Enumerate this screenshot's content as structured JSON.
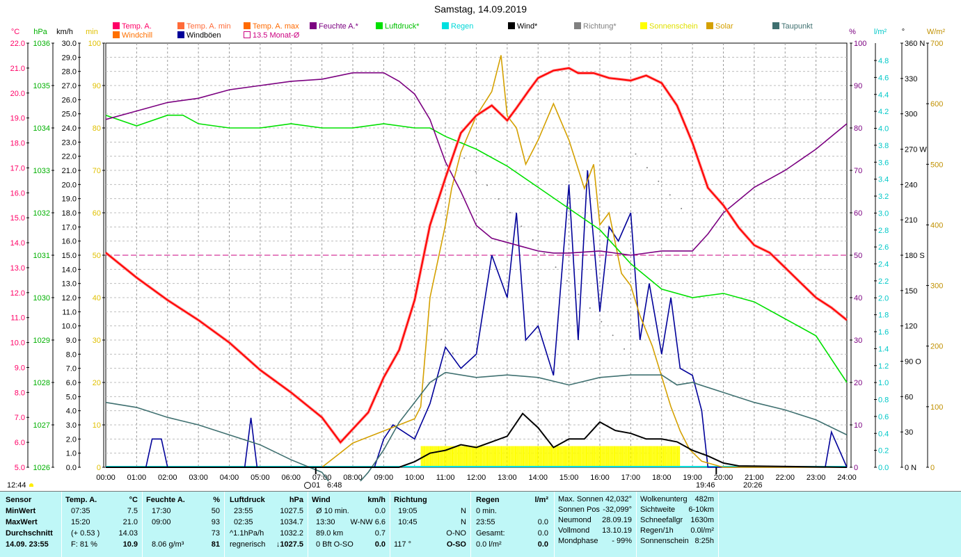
{
  "title": "Samstag, 14.09.2019",
  "legend": [
    {
      "label": "Temp. A.",
      "color": "#ff0066",
      "sym": "box"
    },
    {
      "label": "Temp. A. min",
      "color": "#ff6a38",
      "sym": "box"
    },
    {
      "label": "Temp. A. max",
      "color": "#ff6a00",
      "sym": "box"
    },
    {
      "label": "Feuchte A.*",
      "color": "#7b0080",
      "sym": "box"
    },
    {
      "label": "Luftdruck*",
      "color": "#00e000",
      "sym": "box"
    },
    {
      "label": "Regen",
      "color": "#00e0e0",
      "sym": "box"
    },
    {
      "label": "Wind*",
      "color": "#000000",
      "sym": "box"
    },
    {
      "label": "Richtung*",
      "color": "#808080",
      "sym": "box"
    },
    {
      "label": "Sonnenschein",
      "color": "#ffff00",
      "sym": "box"
    },
    {
      "label": "Solar",
      "color": "#d4a000",
      "sym": "box"
    },
    {
      "label": "Taupunkt",
      "color": "#3f7070",
      "sym": "box"
    },
    {
      "label": "Windchill",
      "color": "#ff7000",
      "sym": "box"
    },
    {
      "label": "Windböen",
      "color": "#000099",
      "sym": "box"
    },
    {
      "label": "13.5 Monat-Ø",
      "color": "#cc0080",
      "sym": "outline"
    }
  ],
  "axis_heads": {
    "celsius": "°C",
    "hpa": "hPa",
    "kmh": "km/h",
    "min": "min",
    "percent": "%",
    "lm2": "l/m²",
    "deg": "°",
    "wm2": "W/m²"
  },
  "axes": {
    "celsius": [
      "22.0",
      "21.0",
      "20.0",
      "19.0",
      "18.0",
      "17.0",
      "16.0",
      "15.0",
      "14.0",
      "13.0",
      "12.0",
      "11.0",
      "10.0",
      "9.0",
      "8.0",
      "7.0",
      "6.0",
      "5.0"
    ],
    "hpa": [
      "1036",
      "1035",
      "1034",
      "1033",
      "1032",
      "1031",
      "1030",
      "1029",
      "1028",
      "1027",
      "1026"
    ],
    "kmh": [
      "30.0",
      "29.0",
      "28.0",
      "27.0",
      "26.0",
      "25.0",
      "24.0",
      "23.0",
      "22.0",
      "21.0",
      "20.0",
      "19.0",
      "18.0",
      "17.0",
      "16.0",
      "15.0",
      "14.0",
      "13.0",
      "12.0",
      "11.0",
      "10.0",
      "9.0",
      "8.0",
      "7.0",
      "6.0",
      "5.0",
      "4.0",
      "3.0",
      "2.0",
      "1.0",
      "0.0"
    ],
    "min": [
      "100",
      "90",
      "80",
      "70",
      "60",
      "50",
      "40",
      "30",
      "20",
      "10",
      "0"
    ],
    "percent": [
      "100",
      "90",
      "80",
      "70",
      "60",
      "50",
      "40",
      "30",
      "20",
      "10",
      "0"
    ],
    "lm2": [
      "4.8",
      "4.6",
      "4.4",
      "4.2",
      "4.0",
      "3.8",
      "3.6",
      "3.4",
      "3.2",
      "3.0",
      "2.8",
      "2.6",
      "2.4",
      "2.2",
      "2.0",
      "1.8",
      "1.6",
      "1.4",
      "1.2",
      "1.0",
      "0.8",
      "0.6",
      "0.4",
      "0.2",
      "0.0"
    ],
    "deg": [
      "360 N",
      "330",
      "300",
      "270 W",
      "240",
      "210",
      "180 S",
      "150",
      "120",
      "90 O",
      "60",
      "30",
      "0 N"
    ],
    "wm2": [
      "700",
      "600",
      "500",
      "400",
      "300",
      "200",
      "100",
      "0"
    ]
  },
  "hours": [
    "00:00",
    "01:00",
    "02:00",
    "03:00",
    "04:00",
    "05:00",
    "06:00",
    "07:00",
    "08:00",
    "09:00",
    "10:00",
    "11:00",
    "12:00",
    "13:00",
    "14:00",
    "15:00",
    "16:00",
    "17:00",
    "18:00",
    "19:00",
    "20:00",
    "21:00",
    "22:00",
    "23:00",
    "24:00"
  ],
  "sun_times": {
    "rise_left": "12:44",
    "rise": "6:48",
    "set": "19:46",
    "set2": "20:26",
    "moon": "0",
    "moon_label": "01"
  },
  "chart_data": {
    "type": "line",
    "x_unit": "hour",
    "series": [
      {
        "name": "Temp. A.",
        "axis": "celsius",
        "color": "#ff0000",
        "x": [
          0,
          1,
          2,
          3,
          4,
          5,
          6,
          7,
          7.6,
          8.5,
          9,
          9.5,
          10,
          10.5,
          11,
          11.5,
          12,
          12.5,
          13,
          13.3,
          13.7,
          14,
          14.5,
          15,
          15.3,
          15.8,
          16.3,
          17,
          17.5,
          18,
          18.5,
          19,
          19.5,
          20,
          20.5,
          21,
          21.5,
          22,
          22.5,
          23,
          23.5,
          24
        ],
        "y": [
          13.6,
          12.6,
          11.7,
          10.9,
          10.0,
          8.9,
          8.0,
          7.0,
          6.0,
          7.2,
          8.6,
          9.7,
          11.7,
          14.7,
          16.6,
          18.4,
          19.1,
          19.5,
          18.9,
          19.4,
          20.1,
          20.6,
          20.9,
          21.0,
          20.8,
          20.8,
          20.6,
          20.5,
          20.7,
          20.4,
          19.5,
          18.0,
          16.2,
          15.5,
          14.6,
          13.9,
          13.6,
          13.0,
          12.4,
          11.8,
          11.4,
          10.9
        ]
      },
      {
        "name": "Feuchte A.*",
        "axis": "percent",
        "color": "#7b0080",
        "x": [
          0,
          1,
          2,
          3,
          4,
          5,
          6,
          7,
          8,
          9,
          9.5,
          10,
          10.5,
          11,
          11.5,
          12,
          12.5,
          13,
          13.5,
          14,
          14.5,
          15,
          16,
          17,
          18,
          18.5,
          19,
          19.5,
          20,
          20.5,
          21,
          22,
          23,
          24
        ],
        "y": [
          82,
          84,
          86,
          87,
          89,
          90,
          91,
          91.5,
          93,
          93,
          91,
          88,
          82,
          72,
          65,
          57,
          54,
          53,
          52,
          51,
          50.5,
          50.5,
          51,
          50,
          51,
          51,
          51,
          55,
          60,
          63,
          66,
          70,
          75,
          81
        ]
      },
      {
        "name": "Luftdruck*",
        "axis": "hpa",
        "color": "#00e000",
        "x": [
          0,
          1,
          2,
          2.5,
          3,
          4,
          5,
          6,
          7,
          8,
          9,
          10,
          10.5,
          11,
          12,
          13,
          14,
          15,
          16,
          17,
          18,
          19,
          20,
          21,
          22,
          23,
          24
        ],
        "y": [
          1034.3,
          1034.05,
          1034.3,
          1034.3,
          1034.1,
          1034.0,
          1034.0,
          1034.1,
          1034.0,
          1034.0,
          1034.1,
          1034.0,
          1034.0,
          1033.8,
          1033.5,
          1033.1,
          1032.6,
          1032.1,
          1031.6,
          1030.8,
          1030.2,
          1030.0,
          1030.1,
          1029.9,
          1029.5,
          1029.1,
          1028.0
        ]
      },
      {
        "name": "Taupunkt",
        "axis": "celsius",
        "color": "#3f7070",
        "x": [
          0,
          1,
          2,
          3,
          4,
          5,
          6,
          7,
          7.6,
          8,
          8.5,
          9,
          9.5,
          10,
          10.5,
          11,
          12,
          13,
          14,
          15,
          16,
          17,
          18,
          18.5,
          19,
          20,
          21,
          22,
          23,
          24
        ],
        "y": [
          7.6,
          7.4,
          7.0,
          6.7,
          6.3,
          5.9,
          5.3,
          4.8,
          3.8,
          4.1,
          4.8,
          5.7,
          6.8,
          7.6,
          8.4,
          8.8,
          8.6,
          8.7,
          8.6,
          8.3,
          8.6,
          8.7,
          8.7,
          8.3,
          8.4,
          8.0,
          7.6,
          7.3,
          6.9,
          6.3
        ]
      },
      {
        "name": "Solar",
        "axis": "wm2",
        "color": "#d4a000",
        "x": [
          0,
          7.0,
          7.5,
          8,
          9,
          10,
          10.2,
          10.5,
          11,
          11.2,
          11.5,
          12,
          12.5,
          12.8,
          13.0,
          13.3,
          13.6,
          14,
          14.5,
          15,
          15.5,
          15.8,
          16,
          16.3,
          16.7,
          17,
          17.3,
          17.7,
          18,
          18.3,
          18.6,
          18.9,
          19.3,
          20,
          24
        ],
        "y": [
          0,
          0,
          20,
          40,
          60,
          80,
          100,
          280,
          400,
          460,
          520,
          580,
          620,
          680,
          580,
          560,
          500,
          540,
          600,
          540,
          460,
          500,
          400,
          420,
          320,
          300,
          250,
          200,
          150,
          100,
          60,
          30,
          10,
          0,
          0
        ]
      },
      {
        "name": "Wind*",
        "axis": "kmh",
        "color": "#000000",
        "x": [
          0,
          9.5,
          10,
          10.5,
          11,
          11.5,
          12,
          12.5,
          13,
          13.5,
          14,
          14.5,
          15,
          15.5,
          16,
          16.5,
          17,
          17.5,
          18,
          18.5,
          19,
          19.5,
          20,
          20.5,
          24
        ],
        "y": [
          0,
          0,
          0.4,
          1.0,
          1.2,
          1.6,
          1.4,
          1.8,
          2.2,
          3.8,
          2.8,
          1.4,
          2.0,
          2.0,
          3.2,
          2.6,
          2.4,
          2.0,
          2.0,
          1.8,
          1.2,
          0.8,
          0.3,
          0.1,
          0
        ]
      },
      {
        "name": "Windböen",
        "axis": "kmh",
        "color": "#000099",
        "x": [
          0,
          1.3,
          1.5,
          1.8,
          2.0,
          4.5,
          4.7,
          4.9,
          8.7,
          9.0,
          9.3,
          10.0,
          10.5,
          11,
          11.5,
          12,
          12.5,
          13,
          13.3,
          13.6,
          14,
          14.5,
          15,
          15.3,
          15.6,
          16,
          16.3,
          16.6,
          17,
          17.3,
          17.6,
          18,
          18.3,
          18.6,
          19,
          19.3,
          19.5,
          23.3,
          23.5,
          24
        ],
        "y": [
          0,
          0,
          2.0,
          2.0,
          0,
          0,
          3.5,
          0,
          0,
          2.0,
          3.0,
          2.0,
          4.5,
          8.5,
          7.0,
          8.0,
          15.0,
          12.0,
          18.0,
          9.0,
          10.0,
          6.5,
          20.0,
          9.0,
          21.0,
          11.0,
          17.0,
          16.0,
          18.0,
          9.0,
          13.0,
          8.0,
          12.0,
          7.0,
          6.5,
          4.0,
          0,
          0,
          2.5,
          0
        ]
      },
      {
        "name": "Sonnenschein",
        "axis": "min",
        "color": "#ffff00",
        "x": [
          10.2,
          18.6
        ],
        "y": [
          5,
          5
        ]
      }
    ],
    "reference": {
      "name": "13.5 Monat-Ø",
      "axis": "celsius",
      "value": 13.5
    }
  },
  "panel": {
    "sensor": {
      "h": "Sensor",
      "rows": [
        "MinWert",
        "MaxWert",
        "Durchschnitt",
        "14.09. 23:55"
      ]
    },
    "temp": {
      "h": "Temp. A.",
      "u": "°C",
      "rows": [
        [
          "07:35",
          "7.5"
        ],
        [
          "15:20",
          "21.0"
        ],
        [
          "(+ 0.53 )",
          "14.03"
        ],
        [
          "F: 81 %",
          "10.9"
        ]
      ]
    },
    "feuchte": {
      "h": "Feuchte A.",
      "u": "%",
      "rows": [
        [
          "17:30",
          "50"
        ],
        [
          "09:00",
          "93"
        ],
        [
          "",
          "73"
        ],
        [
          "8.06 g/m³",
          "81"
        ]
      ]
    },
    "druck": {
      "h": "Luftdruck",
      "u": "hPa",
      "rows": [
        [
          "23:55",
          "1027.5"
        ],
        [
          "02:35",
          "1034.7"
        ],
        [
          "^1.1hPa/h",
          "1032.2"
        ],
        [
          "regnerisch",
          "↓1027.5"
        ]
      ]
    },
    "wind": {
      "h": "Wind",
      "u": "km/h",
      "rows": [
        [
          "Ø 10 min.",
          "0.0"
        ],
        [
          "13:30",
          "W-NW 6.6"
        ],
        [
          "89.0 km",
          "0.7"
        ],
        [
          "0 Bft O-SO",
          "0.0"
        ]
      ]
    },
    "richtung": {
      "h": "Richtung",
      "rows": [
        [
          "19:05",
          "N"
        ],
        [
          "10:45",
          "N"
        ],
        [
          "",
          "O-NO"
        ],
        [
          "117 °",
          "O-SO"
        ]
      ]
    },
    "regen": {
      "h": "Regen",
      "u": "l/m²",
      "rows": [
        [
          "0 min.",
          ""
        ],
        [
          "23:55",
          "0.0"
        ],
        [
          "Gesamt:",
          "0.0"
        ],
        [
          "0.0 l/m²",
          "0.0"
        ]
      ]
    },
    "astro": {
      "rows": [
        [
          "Max. Sonnen",
          "42,032°"
        ],
        [
          "Sonnen Pos",
          "-32,099°"
        ],
        [
          "Neumond",
          "28.09.19"
        ],
        [
          "Vollmond",
          "13.10.19"
        ],
        [
          "Mondphase",
          "- 99%"
        ]
      ]
    },
    "misc": {
      "rows": [
        [
          "Wolkenunterg",
          "482m"
        ],
        [
          "Sichtweite",
          "6-10km"
        ],
        [
          "Schneefallgr",
          "1630m"
        ],
        [
          "Regen/1h",
          "0.0l/m²"
        ],
        [
          "Sonnenschein",
          "8:25h"
        ]
      ]
    }
  }
}
